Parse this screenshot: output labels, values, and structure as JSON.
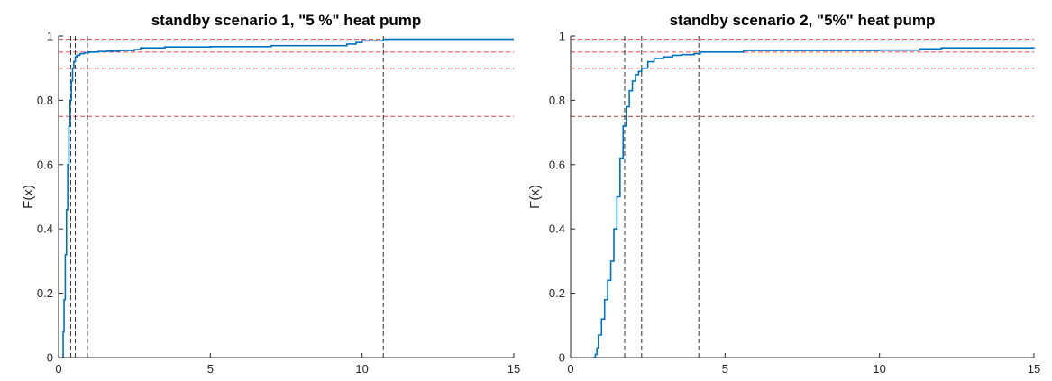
{
  "chart_data": [
    {
      "type": "line",
      "title": "standby scenario 1, \"5 %\" heat pump",
      "xlabel": "",
      "ylabel": "F(x)",
      "xlim": [
        0,
        15
      ],
      "ylim": [
        0,
        1
      ],
      "x_ticks": [
        "0",
        "5",
        "10",
        "15"
      ],
      "y_ticks": [
        "0",
        "0.2",
        "0.4",
        "0.6",
        "0.8",
        "1"
      ],
      "grid": false,
      "series": [
        {
          "color": "#0072BD",
          "x": [
            0.12,
            0.15,
            0.18,
            0.22,
            0.26,
            0.3,
            0.34,
            0.38,
            0.42,
            0.46,
            0.5,
            0.55,
            0.6,
            0.7,
            0.85,
            1.0,
            1.3,
            1.6,
            2.0,
            2.5,
            2.7,
            3.5,
            5.0,
            7.0,
            9.5,
            9.8,
            10.0,
            10.7,
            12.0,
            15.0
          ],
          "y": [
            0.0,
            0.08,
            0.18,
            0.32,
            0.46,
            0.6,
            0.72,
            0.8,
            0.86,
            0.9,
            0.92,
            0.935,
            0.94,
            0.945,
            0.948,
            0.95,
            0.952,
            0.953,
            0.955,
            0.958,
            0.963,
            0.966,
            0.967,
            0.97,
            0.975,
            0.98,
            0.985,
            0.99,
            0.99,
            0.99
          ]
        }
      ],
      "hlines": [
        {
          "y": 0.75,
          "color": "#E8474B"
        },
        {
          "y": 0.9,
          "color": "#E8474B"
        },
        {
          "y": 0.95,
          "color": "#E8474B"
        },
        {
          "y": 0.99,
          "color": "#E8474B"
        }
      ],
      "vlines": [
        {
          "x": 0.4,
          "color": "#333333"
        },
        {
          "x": 0.55,
          "color": "#333333"
        },
        {
          "x": 0.95,
          "color": "#333333"
        },
        {
          "x": 10.7,
          "color": "#333333"
        }
      ]
    },
    {
      "type": "line",
      "title": "standby scenario 2, \"5%\" heat pump",
      "xlabel": "",
      "ylabel": "F(x)",
      "xlim": [
        0,
        15
      ],
      "ylim": [
        0,
        1
      ],
      "x_ticks": [
        "0",
        "5",
        "10",
        "15"
      ],
      "y_ticks": [
        "0",
        "0.2",
        "0.4",
        "0.6",
        "0.8",
        "1"
      ],
      "grid": false,
      "series": [
        {
          "color": "#0072BD",
          "x": [
            0.75,
            0.8,
            0.85,
            0.9,
            1.0,
            1.1,
            1.2,
            1.3,
            1.4,
            1.5,
            1.6,
            1.7,
            1.8,
            1.9,
            2.0,
            2.1,
            2.2,
            2.3,
            2.5,
            2.7,
            3.0,
            3.3,
            3.6,
            4.0,
            4.2,
            5.0,
            5.6,
            7.0,
            10.0,
            11.3,
            12.0,
            15.0
          ],
          "y": [
            0.0,
            0.01,
            0.03,
            0.07,
            0.12,
            0.18,
            0.24,
            0.3,
            0.4,
            0.5,
            0.62,
            0.72,
            0.78,
            0.83,
            0.86,
            0.88,
            0.89,
            0.9,
            0.92,
            0.93,
            0.935,
            0.94,
            0.942,
            0.945,
            0.95,
            0.95,
            0.955,
            0.955,
            0.956,
            0.96,
            0.963,
            0.965
          ]
        }
      ],
      "hlines": [
        {
          "y": 0.75,
          "color": "#B03A3C"
        },
        {
          "y": 0.9,
          "color": "#E8474B"
        },
        {
          "y": 0.95,
          "color": "#E8474B"
        },
        {
          "y": 0.99,
          "color": "#E8474B"
        }
      ],
      "vlines": [
        {
          "x": 1.75,
          "color": "#333333"
        },
        {
          "x": 2.3,
          "color": "#333333"
        },
        {
          "x": 4.15,
          "color": "#333333"
        }
      ]
    }
  ]
}
